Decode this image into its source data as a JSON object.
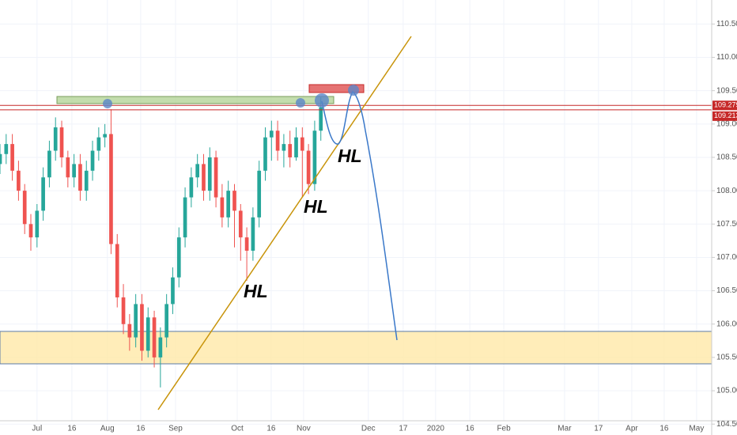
{
  "chart_data": {
    "type": "candlestick",
    "x": [
      -12,
      -10,
      -8,
      -6,
      -4,
      -2,
      0,
      2,
      4,
      6,
      8,
      10,
      12,
      14,
      16,
      18,
      20,
      22,
      24,
      26,
      28,
      30,
      32,
      34,
      36,
      38,
      40,
      42,
      44,
      46,
      48,
      50,
      52,
      54,
      56,
      58,
      60,
      62,
      64,
      66,
      68,
      70,
      72,
      74,
      76,
      78,
      80,
      82,
      84,
      86,
      88,
      90,
      92
    ],
    "open": [
      108.4,
      108.55,
      108.7,
      108.3,
      108.0,
      107.5,
      107.3,
      107.7,
      108.2,
      108.6,
      108.95,
      108.5,
      108.2,
      108.4,
      108.0,
      108.3,
      108.6,
      108.8,
      108.85,
      107.2,
      106.4,
      106.0,
      105.8,
      106.3,
      105.6,
      106.1,
      105.5,
      105.8,
      106.3,
      106.7,
      107.3,
      107.9,
      108.2,
      108.4,
      108.0,
      108.5,
      107.9,
      107.6,
      108.0,
      107.7,
      107.3,
      107.1,
      107.6,
      108.3,
      108.8,
      108.9,
      108.6,
      108.7,
      108.5,
      108.8,
      108.6,
      108.1,
      108.9
    ],
    "high": [
      108.7,
      108.85,
      108.85,
      108.45,
      108.1,
      107.65,
      107.8,
      108.35,
      108.75,
      109.1,
      109.05,
      108.6,
      108.55,
      108.55,
      108.45,
      108.75,
      108.95,
      109.0,
      109.22,
      107.35,
      106.6,
      106.15,
      106.45,
      106.45,
      106.25,
      106.2,
      105.95,
      106.45,
      106.85,
      107.45,
      108.05,
      108.35,
      108.55,
      108.55,
      108.65,
      108.6,
      108.1,
      108.15,
      108.1,
      107.8,
      107.45,
      107.75,
      108.45,
      108.95,
      109.05,
      109.05,
      108.85,
      108.9,
      108.95,
      108.95,
      108.7,
      109.05,
      109.4
    ],
    "low": [
      108.25,
      108.4,
      108.15,
      107.85,
      107.35,
      107.1,
      107.15,
      107.55,
      108.05,
      108.45,
      108.35,
      108.05,
      108.05,
      107.85,
      107.85,
      108.15,
      108.45,
      108.65,
      107.05,
      106.25,
      105.85,
      105.6,
      105.65,
      105.45,
      105.5,
      105.35,
      105.05,
      105.65,
      106.15,
      106.55,
      107.15,
      107.75,
      108.05,
      107.85,
      107.85,
      107.75,
      107.45,
      107.45,
      107.15,
      106.95,
      106.65,
      106.95,
      107.45,
      108.15,
      108.45,
      108.45,
      108.35,
      108.35,
      108.45,
      107.9,
      107.95,
      108.0,
      108.75
    ],
    "close": [
      108.55,
      108.7,
      108.3,
      108.0,
      107.5,
      107.3,
      107.7,
      108.2,
      108.6,
      108.95,
      108.5,
      108.2,
      108.4,
      108.0,
      108.3,
      108.6,
      108.8,
      108.85,
      107.2,
      106.4,
      106.0,
      105.8,
      106.3,
      105.6,
      106.1,
      105.5,
      105.8,
      106.3,
      106.7,
      107.3,
      107.9,
      108.2,
      108.4,
      108.0,
      108.5,
      107.9,
      107.6,
      108.0,
      107.7,
      107.3,
      107.1,
      107.6,
      108.3,
      108.8,
      108.9,
      108.6,
      108.7,
      108.5,
      108.8,
      108.6,
      108.1,
      108.9,
      109.25
    ],
    "up_color": "#26a69a",
    "down_color": "#ef5350",
    "xlim": [
      -12,
      218.7
    ],
    "xticks": [
      {
        "value": 0,
        "label": "Jul"
      },
      {
        "value": 11.3,
        "label": "16"
      },
      {
        "value": 22.8,
        "label": "Aug"
      },
      {
        "value": 33.6,
        "label": "16"
      },
      {
        "value": 44.9,
        "label": "Sep"
      },
      {
        "value": 64.9,
        "label": "Oct"
      },
      {
        "value": 75.9,
        "label": "16"
      },
      {
        "value": 86.4,
        "label": "Nov"
      },
      {
        "value": 107.4,
        "label": "Dec"
      },
      {
        "value": 118.7,
        "label": "17"
      },
      {
        "value": 129.2,
        "label": "2020"
      },
      {
        "value": 140.3,
        "label": "16"
      },
      {
        "value": 151.3,
        "label": "Feb"
      },
      {
        "value": 171,
        "label": "Mar"
      },
      {
        "value": 182,
        "label": "17"
      },
      {
        "value": 192.8,
        "label": "Apr"
      },
      {
        "value": 203.3,
        "label": "16"
      },
      {
        "value": 213.8,
        "label": "May"
      }
    ],
    "ylim": [
      104.55,
      110.86
    ],
    "yticks": [
      {
        "value": 110.5,
        "label": "110.500"
      },
      {
        "value": 110,
        "label": "110.000"
      },
      {
        "value": 109.5,
        "label": "109.500"
      },
      {
        "value": 109,
        "label": "109.000"
      },
      {
        "value": 108.5,
        "label": "108.500"
      },
      {
        "value": 108,
        "label": "108.000"
      },
      {
        "value": 107.5,
        "label": "107.500"
      },
      {
        "value": 107,
        "label": "107.000"
      },
      {
        "value": 106.5,
        "label": "106.500"
      },
      {
        "value": 106,
        "label": "106.000"
      },
      {
        "value": 105.5,
        "label": "105.500"
      },
      {
        "value": 105,
        "label": "105.000"
      },
      {
        "value": 104.5,
        "label": "104.500"
      }
    ],
    "grid": true,
    "price_lines": [
      109.279,
      109.213
    ],
    "price_line_color": "#c62828",
    "annotations": [
      "HL",
      "HL",
      "HL"
    ]
  }
}
